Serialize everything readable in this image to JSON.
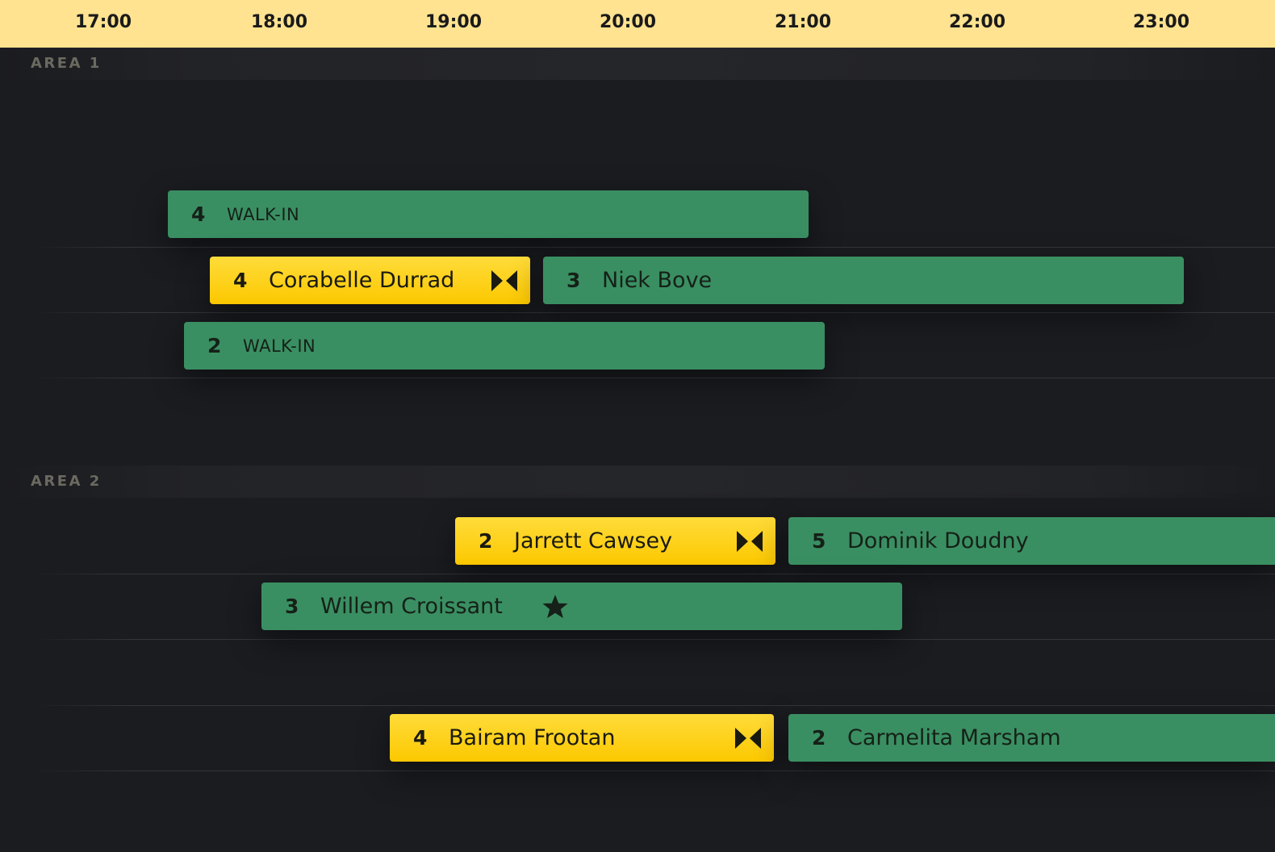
{
  "timeline": {
    "hours": [
      "17:00",
      "18:00",
      "19:00",
      "20:00",
      "21:00",
      "22:00",
      "23:00"
    ]
  },
  "areas": [
    {
      "label": "AREA 1",
      "bookings": [
        {
          "party": "4",
          "name": "WALK-IN",
          "status": "seated",
          "walk_in": true
        },
        {
          "party": "4",
          "name": "Corabelle Durrad",
          "status": "pending",
          "icon": "bowtie-icon"
        },
        {
          "party": "3",
          "name": "Niek Bove",
          "status": "seated"
        },
        {
          "party": "2",
          "name": "WALK-IN",
          "status": "seated",
          "walk_in": true
        }
      ]
    },
    {
      "label": "AREA 2",
      "bookings": [
        {
          "party": "2",
          "name": "Jarrett Cawsey",
          "status": "pending",
          "icon": "bowtie-icon"
        },
        {
          "party": "5",
          "name": "Dominik Doudny",
          "status": "seated"
        },
        {
          "party": "3",
          "name": "Willem Croissant",
          "status": "seated",
          "icon": "star-icon"
        },
        {
          "party": "4",
          "name": "Bairam Frootan",
          "status": "pending",
          "icon": "bowtie-icon"
        },
        {
          "party": "2",
          "name": "Carmelita Marsham",
          "status": "seated"
        }
      ]
    }
  ],
  "colors": {
    "header": "#ffe390",
    "background": "#1b1c20",
    "seated": "#3a8f62",
    "pending": "#fcc800"
  }
}
